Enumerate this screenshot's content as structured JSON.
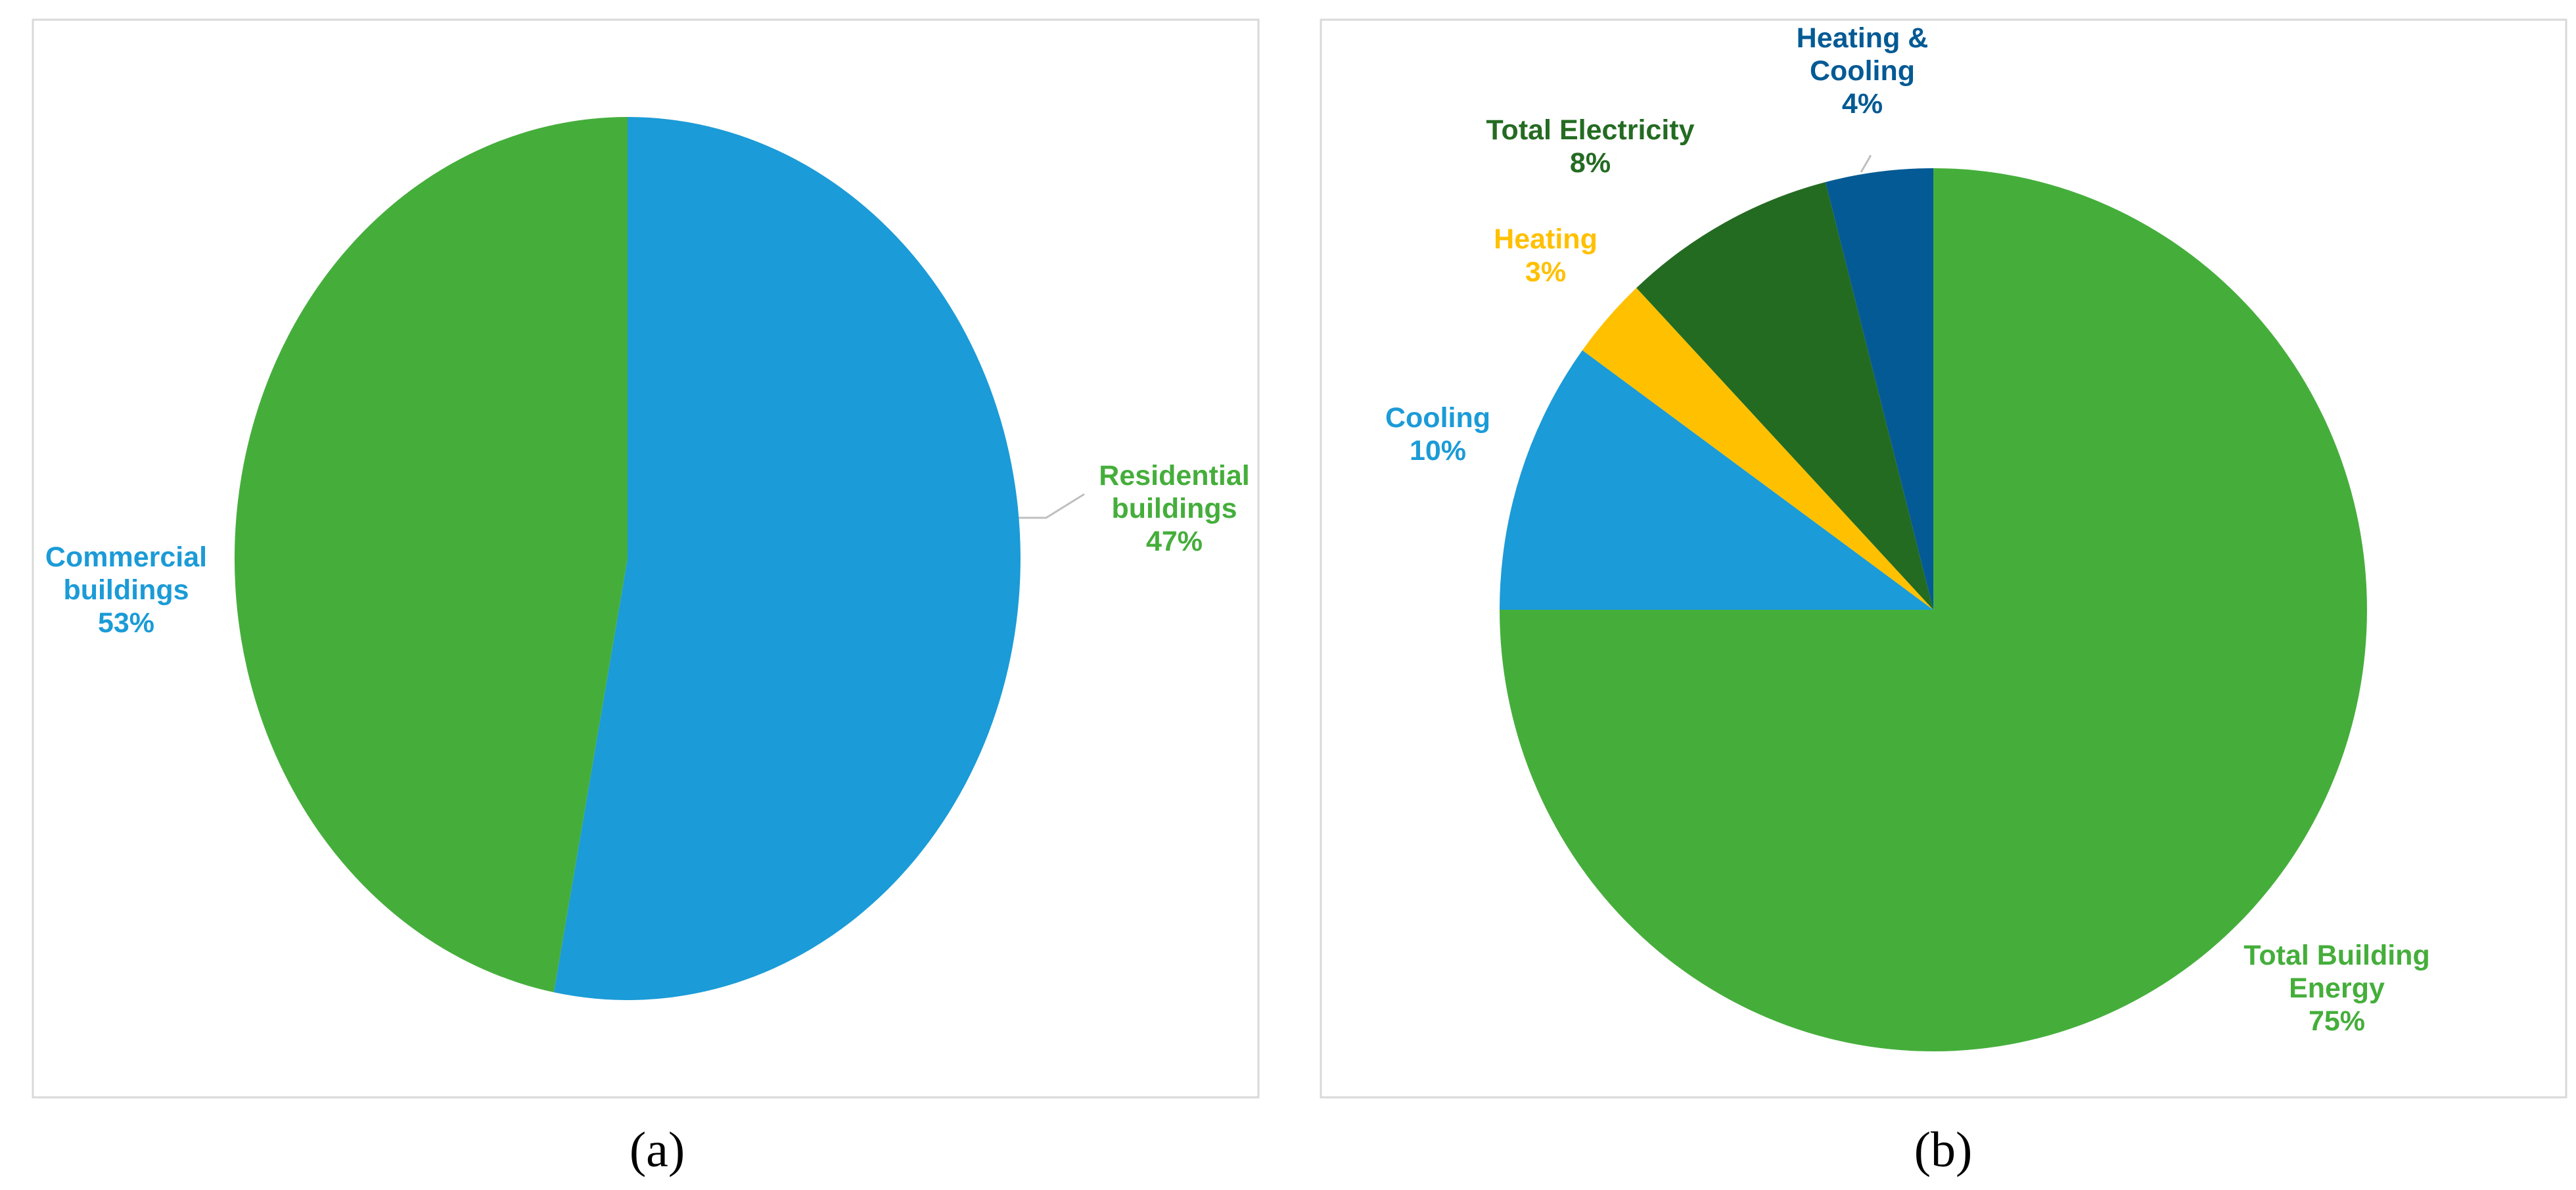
{
  "chart_data": [
    {
      "type": "pie",
      "panel": "(a)",
      "start_angle_deg": 0,
      "direction": "counter-clockwise",
      "slices": [
        {
          "label": [
            "Residential",
            "buildings"
          ],
          "value": 47,
          "value_label": "47%",
          "color": "#45ae3b"
        },
        {
          "label": [
            "Commercial",
            "buildings"
          ],
          "value": 53,
          "value_label": "53%",
          "color": "#1b9bd7"
        }
      ]
    },
    {
      "type": "pie",
      "panel": "(b)",
      "start_angle_deg": 0,
      "direction": "clockwise",
      "slices": [
        {
          "label": [
            "Total Building",
            "Energy"
          ],
          "value": 75,
          "value_label": "75%",
          "color": "#45ae3b"
        },
        {
          "label": [
            "Cooling"
          ],
          "value": 10,
          "value_label": "10%",
          "color": "#1b9bd7"
        },
        {
          "label": [
            "Heating"
          ],
          "value": 3,
          "value_label": "3%",
          "color": "#ffc000"
        },
        {
          "label": [
            "Total Electricity"
          ],
          "value": 8,
          "value_label": "8%",
          "color": "#246b22"
        },
        {
          "label": [
            "Heating &",
            "Cooling"
          ],
          "value": 4,
          "value_label": "4%",
          "color": "#045a94"
        }
      ]
    }
  ]
}
